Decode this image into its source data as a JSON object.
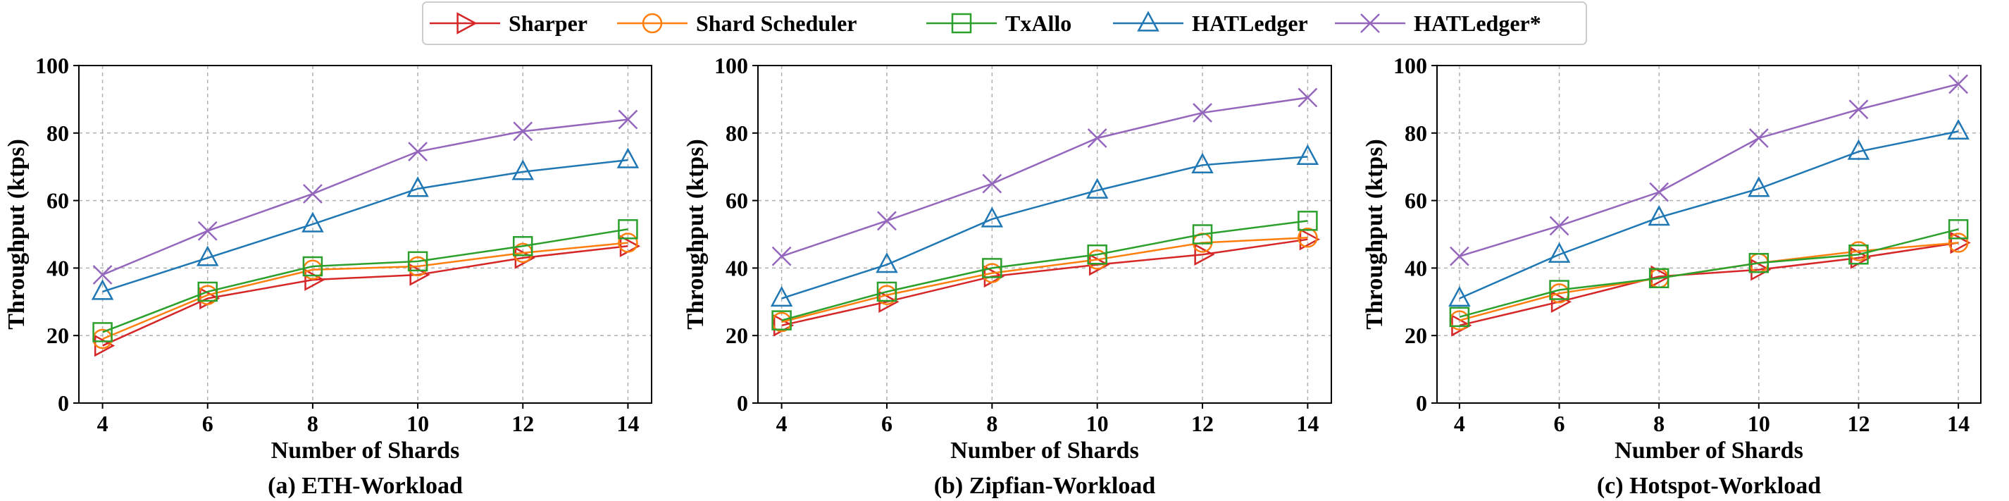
{
  "legend": [
    {
      "name": "Sharper",
      "color": "#d62728",
      "marker": "triangle-right"
    },
    {
      "name": "Shard Scheduler",
      "color": "#ff7f0e",
      "marker": "circle"
    },
    {
      "name": "TxAllo",
      "color": "#2ca02c",
      "marker": "square"
    },
    {
      "name": "HATLedger",
      "color": "#1f77b4",
      "marker": "triangle-up"
    },
    {
      "name": "HATLedger*",
      "color": "#9467bd",
      "marker": "x"
    }
  ],
  "chart_data": [
    {
      "type": "line",
      "caption": "(a) ETH-Workload",
      "xlabel": "Number of Shards",
      "ylabel": "Throughput (ktps)",
      "x": [
        4,
        6,
        8,
        10,
        12,
        14
      ],
      "ylim": [
        0,
        100
      ],
      "yticks": [
        0,
        20,
        40,
        60,
        80,
        100
      ],
      "grid": true,
      "series": [
        {
          "name": "Sharper",
          "values": [
            17,
            31,
            36.5,
            38,
            43,
            46.5
          ]
        },
        {
          "name": "Shard Scheduler",
          "values": [
            19,
            32,
            39.5,
            40.5,
            44.5,
            47.5
          ]
        },
        {
          "name": "TxAllo",
          "values": [
            21,
            33,
            40.5,
            42,
            46.5,
            51.5
          ]
        },
        {
          "name": "HATLedger",
          "values": [
            33,
            43,
            53,
            63.5,
            68.5,
            72
          ]
        },
        {
          "name": "HATLedger*",
          "values": [
            38,
            51,
            62,
            74.5,
            80.5,
            84
          ]
        }
      ]
    },
    {
      "type": "line",
      "caption": "(b) Zipfian-Workload",
      "xlabel": "Number of Shards",
      "ylabel": "Throughput (ktps)",
      "x": [
        4,
        6,
        8,
        10,
        12,
        14
      ],
      "ylim": [
        0,
        100
      ],
      "yticks": [
        0,
        20,
        40,
        60,
        80,
        100
      ],
      "grid": true,
      "series": [
        {
          "name": "Sharper",
          "values": [
            23,
            30,
            37.5,
            41,
            44,
            48.5
          ]
        },
        {
          "name": "Shard Scheduler",
          "values": [
            24,
            32,
            38.5,
            42.5,
            47.5,
            49
          ]
        },
        {
          "name": "TxAllo",
          "values": [
            24.5,
            33,
            40,
            44,
            50,
            54
          ]
        },
        {
          "name": "HATLedger",
          "values": [
            31,
            41,
            54.5,
            63,
            70.5,
            73
          ]
        },
        {
          "name": "HATLedger*",
          "values": [
            43.5,
            54,
            65,
            78.5,
            86,
            90.5
          ]
        }
      ]
    },
    {
      "type": "line",
      "caption": "(c) Hotspot-Workload",
      "xlabel": "Number of Shards",
      "ylabel": "Throughput (ktps)",
      "x": [
        4,
        6,
        8,
        10,
        12,
        14
      ],
      "ylim": [
        0,
        100
      ],
      "yticks": [
        0,
        20,
        40,
        60,
        80,
        100
      ],
      "grid": true,
      "series": [
        {
          "name": "Sharper",
          "values": [
            23,
            30,
            37.5,
            39.5,
            43,
            47.5
          ]
        },
        {
          "name": "Shard Scheduler",
          "values": [
            24.5,
            32.5,
            37,
            41.5,
            45,
            47.5
          ]
        },
        {
          "name": "TxAllo",
          "values": [
            25.5,
            33.5,
            37,
            41.5,
            44,
            51.5
          ]
        },
        {
          "name": "HATLedger",
          "values": [
            31,
            44,
            55,
            63.5,
            74.5,
            80.5
          ]
        },
        {
          "name": "HATLedger*",
          "values": [
            43.5,
            52.5,
            62.5,
            78.5,
            87,
            94.5
          ]
        }
      ]
    }
  ]
}
